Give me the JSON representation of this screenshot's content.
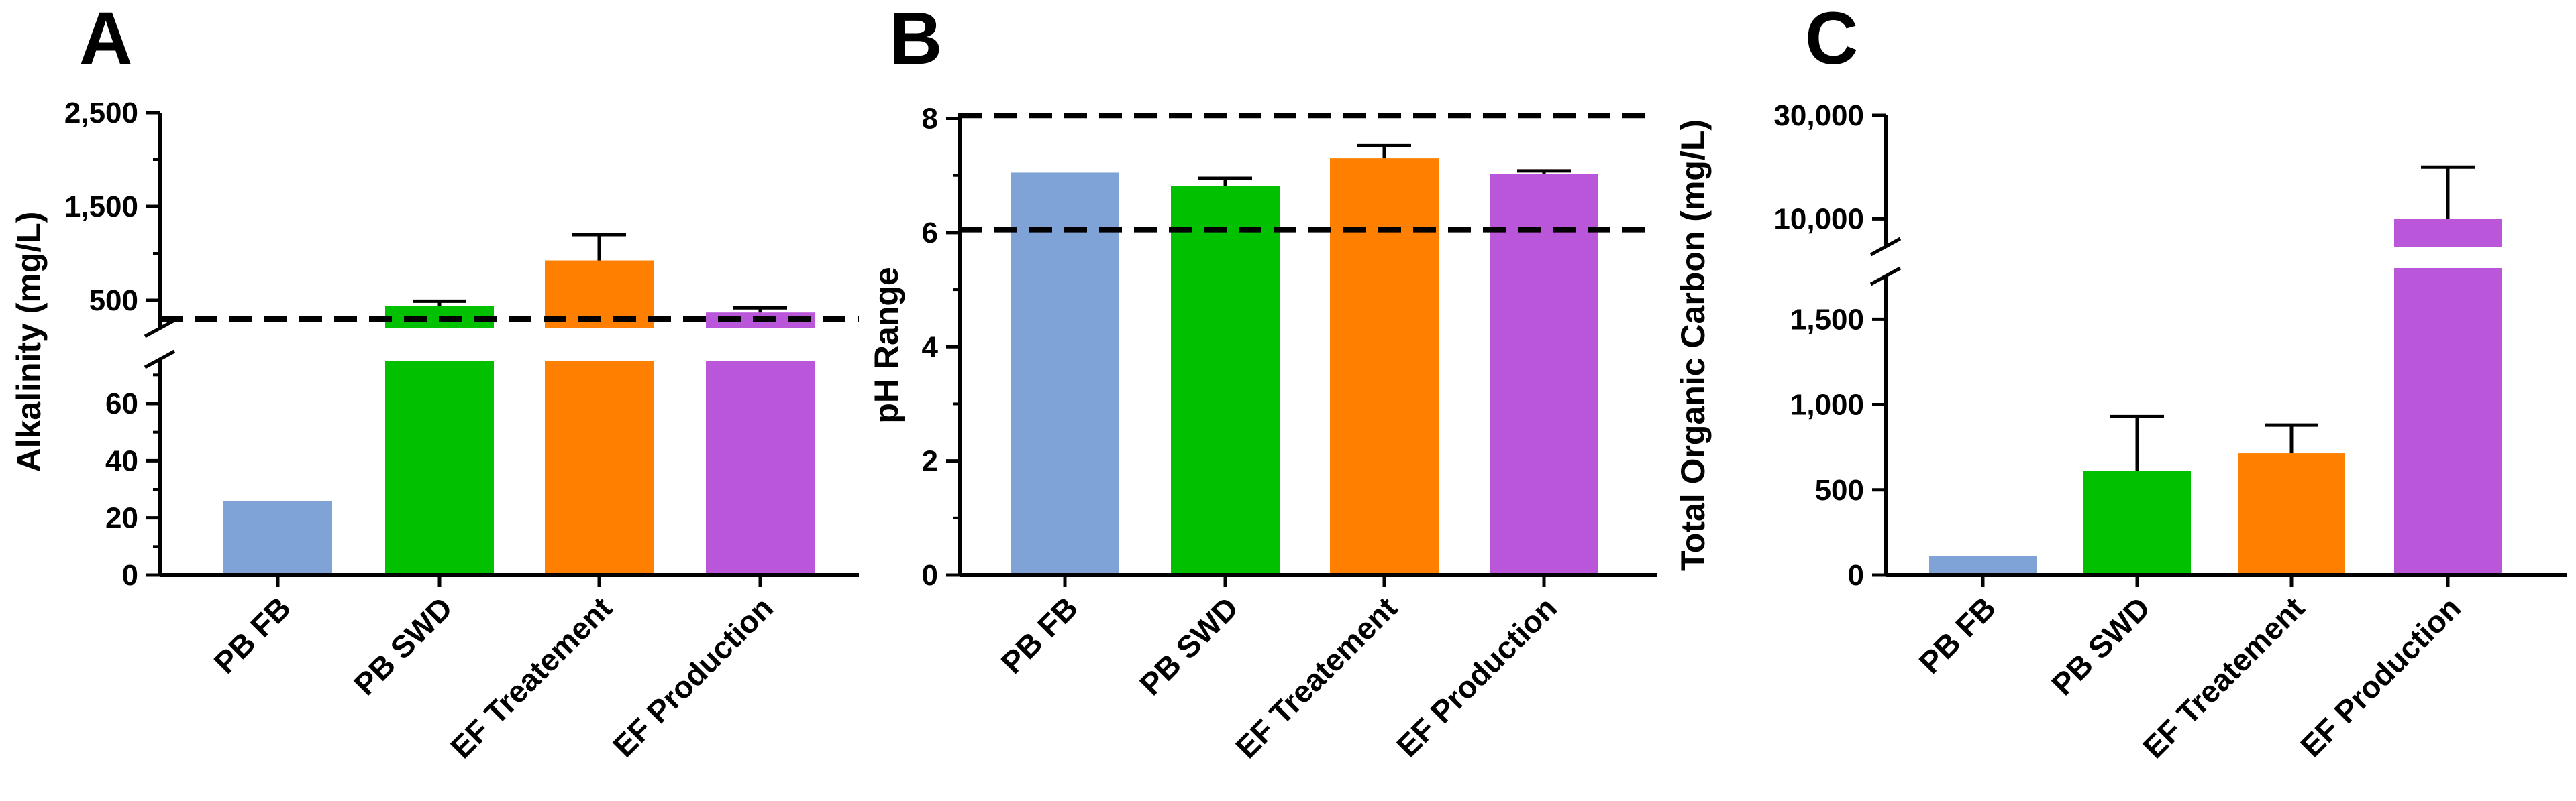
{
  "chart_data": [
    {
      "panel": "A",
      "type": "bar",
      "ylabel": "Alkalinity (mg/L)",
      "categories": [
        "PB FB",
        "PB SWD",
        "EF Treatement",
        "EF Production"
      ],
      "values": [
        26,
        440,
        925,
        370
      ],
      "error_upper": [
        null,
        490,
        1200,
        420
      ],
      "colors": [
        "#7fa3d6",
        "#00c000",
        "#ff8000",
        "#b956d9"
      ],
      "y_axis_broken": true,
      "ylim_lower": [
        0,
        75
      ],
      "ylim_upper": [
        250,
        2500
      ],
      "lower_ticks": [
        0,
        20,
        40,
        60
      ],
      "upper_ticks": [
        500,
        1500,
        2500
      ],
      "lower_tick_labels": [
        "0",
        "20",
        "40",
        "60"
      ],
      "upper_tick_labels": [
        "500",
        "1,500",
        "2,500"
      ],
      "reference_lines": [
        300
      ]
    },
    {
      "panel": "B",
      "type": "bar",
      "ylabel": "pH Range",
      "categories": [
        "PB FB",
        "PB SWD",
        "EF Treatement",
        "EF Production"
      ],
      "values": [
        7.05,
        6.82,
        7.3,
        7.02
      ],
      "error_upper": [
        null,
        6.95,
        7.52,
        7.08
      ],
      "colors": [
        "#7fa3d6",
        "#00c000",
        "#ff8000",
        "#b956d9"
      ],
      "ylim": [
        0,
        8.1
      ],
      "ticks": [
        0,
        2,
        4,
        6,
        8
      ],
      "tick_labels": [
        "0",
        "2",
        "4",
        "6",
        "8"
      ],
      "reference_lines": [
        6.05,
        8.05
      ]
    },
    {
      "panel": "C",
      "type": "bar",
      "ylabel": "Total Organic Carbon (mg/L)",
      "categories": [
        "PB FB",
        "PB SWD",
        "EF Treatement",
        "EF Production"
      ],
      "values": [
        110,
        610,
        715,
        10000
      ],
      "error_upper": [
        null,
        930,
        880,
        20000
      ],
      "colors": [
        "#7fa3d6",
        "#00c000",
        "#ff8000",
        "#b956d9"
      ],
      "y_axis_broken": true,
      "ylim_lower": [
        0,
        1800
      ],
      "ylim_upper": [
        5000,
        30000
      ],
      "lower_ticks": [
        0,
        500,
        1000,
        1500
      ],
      "upper_ticks": [
        10000,
        30000
      ],
      "lower_tick_labels": [
        "0",
        "500",
        "1,000",
        "1,500"
      ],
      "upper_tick_labels": [
        "10,000",
        "30,000"
      ],
      "reference_lines": []
    }
  ]
}
